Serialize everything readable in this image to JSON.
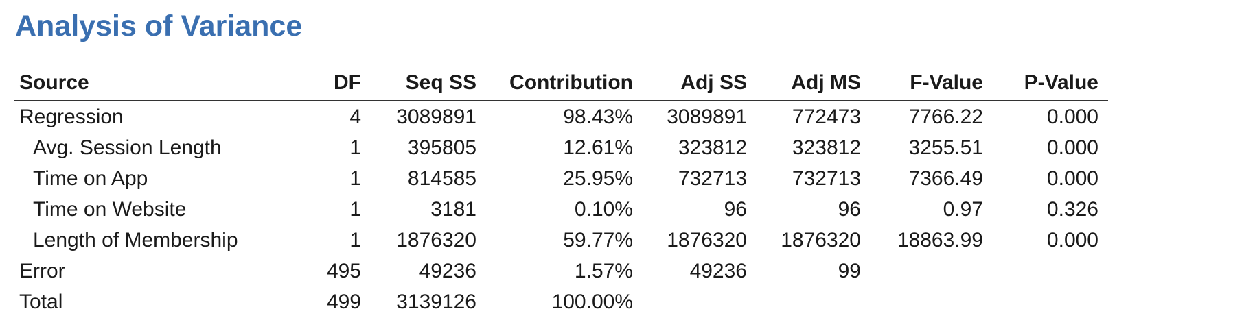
{
  "title": "Analysis of Variance",
  "table": {
    "headers": {
      "source": "Source",
      "df": "DF",
      "seq_ss": "Seq SS",
      "contribution": "Contribution",
      "adj_ss": "Adj SS",
      "adj_ms": "Adj MS",
      "f_value": "F-Value",
      "p_value": "P-Value"
    },
    "rows": [
      {
        "source": "Regression",
        "indent": false,
        "df": "4",
        "seq_ss": "3089891",
        "contribution": "98.43%",
        "adj_ss": "3089891",
        "adj_ms": "772473",
        "f_value": "7766.22",
        "p_value": "0.000"
      },
      {
        "source": "Avg. Session Length",
        "indent": true,
        "df": "1",
        "seq_ss": "395805",
        "contribution": "12.61%",
        "adj_ss": "323812",
        "adj_ms": "323812",
        "f_value": "3255.51",
        "p_value": "0.000"
      },
      {
        "source": "Time on App",
        "indent": true,
        "df": "1",
        "seq_ss": "814585",
        "contribution": "25.95%",
        "adj_ss": "732713",
        "adj_ms": "732713",
        "f_value": "7366.49",
        "p_value": "0.000"
      },
      {
        "source": "Time on Website",
        "indent": true,
        "df": "1",
        "seq_ss": "3181",
        "contribution": "0.10%",
        "adj_ss": "96",
        "adj_ms": "96",
        "f_value": "0.97",
        "p_value": "0.326"
      },
      {
        "source": "Length of Membership",
        "indent": true,
        "df": "1",
        "seq_ss": "1876320",
        "contribution": "59.77%",
        "adj_ss": "1876320",
        "adj_ms": "1876320",
        "f_value": "18863.99",
        "p_value": "0.000"
      },
      {
        "source": "Error",
        "indent": false,
        "df": "495",
        "seq_ss": "49236",
        "contribution": "1.57%",
        "adj_ss": "49236",
        "adj_ms": "99",
        "f_value": "",
        "p_value": ""
      },
      {
        "source": "Total",
        "indent": false,
        "df": "499",
        "seq_ss": "3139126",
        "contribution": "100.00%",
        "adj_ss": "",
        "adj_ms": "",
        "f_value": "",
        "p_value": ""
      }
    ]
  }
}
